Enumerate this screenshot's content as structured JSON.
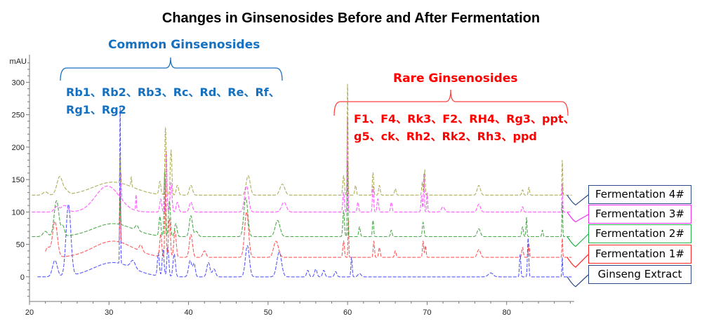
{
  "title": "Changes in Ginsenosides Before and After Fermentation",
  "groups": {
    "common": {
      "title": "Common Ginsenosides",
      "line1": "Rb1、Rb2、Rb3、Rc、Rd、Re、Rf、",
      "line2": "Rg1、Rg2",
      "color": "#1570c0"
    },
    "rare": {
      "title": "Rare Ginsenosides",
      "line1": "F1、F4、Rk3、F2、RH4、Rg3、ppt、",
      "line2": "g5、ck、Rh2、Rk2、Rh3、ppd",
      "color": "#ff0000"
    }
  },
  "chart_data": {
    "type": "line",
    "title": "Changes in Ginsenosides Before and After Fermentation",
    "xlabel": "",
    "ylabel": "mAU",
    "xlim": [
      20,
      88.5
    ],
    "ylim": [
      -38,
      335
    ],
    "xticks": [
      20,
      30,
      40,
      50,
      60,
      70,
      80
    ],
    "yticks": [
      0,
      50,
      100,
      150,
      200,
      250,
      300
    ],
    "grid": false,
    "legend": "right",
    "peak_format": "[retention_time_min, height_mAU, width_min]",
    "series": [
      {
        "name": "Ginseng Extract",
        "color": "#3a3aff",
        "legend_border": "#2a4a8a",
        "baseline": 0,
        "start": 21,
        "peaks": [
          [
            23.2,
            25,
            0.3
          ],
          [
            24.9,
            110,
            0.3
          ],
          [
            30.5,
            22,
            2.5
          ],
          [
            31.4,
            245,
            0.05
          ],
          [
            33,
            12,
            0.3
          ],
          [
            36.2,
            35,
            0.12
          ],
          [
            36.8,
            40,
            0.12
          ],
          [
            37.4,
            45,
            0.12
          ],
          [
            38.2,
            35,
            0.15
          ],
          [
            40.2,
            25,
            0.2
          ],
          [
            40.7,
            20,
            0.15
          ],
          [
            42.5,
            22,
            0.2
          ],
          [
            43.2,
            12,
            0.2
          ],
          [
            47.4,
            48,
            0.25
          ],
          [
            51.4,
            38,
            0.3
          ],
          [
            55,
            10,
            0.15
          ],
          [
            56,
            12,
            0.15
          ],
          [
            57,
            10,
            0.15
          ],
          [
            58.5,
            8,
            0.15
          ],
          [
            60.5,
            30,
            0.08
          ],
          [
            61.5,
            5,
            0.2
          ],
          [
            78,
            6,
            0.3
          ],
          [
            81.7,
            35,
            0.08
          ],
          [
            82.7,
            60,
            0.08
          ],
          [
            87,
            30,
            0.05
          ]
        ]
      },
      {
        "name": "Fermentation 1#",
        "color": "#ff3b3b",
        "legend_border": "#ff2020",
        "baseline": 30,
        "start": 22,
        "peaks": [
          [
            22.3,
            15,
            0.3
          ],
          [
            23.2,
            55,
            0.3
          ],
          [
            30.5,
            25,
            2.5
          ],
          [
            31.4,
            80,
            0.05
          ],
          [
            34,
            10,
            0.2
          ],
          [
            36.5,
            35,
            0.12
          ],
          [
            37.1,
            120,
            0.08
          ],
          [
            37.6,
            60,
            0.12
          ],
          [
            38.3,
            40,
            0.15
          ],
          [
            40.3,
            35,
            0.2
          ],
          [
            42,
            10,
            0.2
          ],
          [
            47.3,
            70,
            0.25
          ],
          [
            51,
            25,
            0.3
          ],
          [
            59.5,
            25,
            0.1
          ],
          [
            60.1,
            60,
            0.05
          ],
          [
            63.3,
            25,
            0.08
          ],
          [
            64,
            15,
            0.1
          ],
          [
            66,
            10,
            0.1
          ],
          [
            69.5,
            25,
            0.08
          ],
          [
            69.8,
            18,
            0.08
          ],
          [
            76.5,
            12,
            0.2
          ],
          [
            82,
            15,
            0.1
          ],
          [
            82.8,
            20,
            0.08
          ],
          [
            87,
            30,
            0.05
          ]
        ]
      },
      {
        "name": "Fermentation 2#",
        "color": "#2e9a2e",
        "legend_border": "#22b14c",
        "baseline": 62,
        "start": 20.3,
        "peaks": [
          [
            22,
            8,
            0.3
          ],
          [
            23.4,
            55,
            0.3
          ],
          [
            24.2,
            15,
            0.2
          ],
          [
            30.5,
            20,
            2.5
          ],
          [
            31.4,
            45,
            0.05
          ],
          [
            33.5,
            8,
            0.2
          ],
          [
            36.4,
            30,
            0.12
          ],
          [
            37,
            100,
            0.08
          ],
          [
            37.6,
            55,
            0.12
          ],
          [
            38.4,
            20,
            0.15
          ],
          [
            40.3,
            32,
            0.2
          ],
          [
            41,
            8,
            0.2
          ],
          [
            47.2,
            60,
            0.25
          ],
          [
            51.2,
            25,
            0.3
          ],
          [
            59.5,
            40,
            0.1
          ],
          [
            60,
            120,
            0.05
          ],
          [
            61.5,
            15,
            0.1
          ],
          [
            63.2,
            25,
            0.08
          ],
          [
            65.5,
            10,
            0.1
          ],
          [
            69.5,
            22,
            0.1
          ],
          [
            76.5,
            12,
            0.2
          ],
          [
            82,
            15,
            0.1
          ],
          [
            82.5,
            30,
            0.06
          ],
          [
            84.5,
            10,
            0.08
          ],
          [
            87,
            55,
            0.05
          ]
        ]
      },
      {
        "name": "Fermentation 3#",
        "color": "#ff40ff",
        "legend_border": "#ee30ee",
        "baseline": 100,
        "start": 20.3,
        "peaks": [
          [
            23.4,
            8,
            0.3
          ],
          [
            24.4,
            10,
            0.4
          ],
          [
            29.8,
            40,
            1.5
          ],
          [
            31.5,
            40,
            0.05
          ],
          [
            33.4,
            25,
            0.05
          ],
          [
            36.5,
            20,
            0.12
          ],
          [
            37.2,
            95,
            0.08
          ],
          [
            37.8,
            45,
            0.12
          ],
          [
            38.6,
            15,
            0.15
          ],
          [
            40.3,
            15,
            0.2
          ],
          [
            47.3,
            40,
            0.25
          ],
          [
            52,
            15,
            0.3
          ],
          [
            59.5,
            30,
            0.1
          ],
          [
            60,
            150,
            0.05
          ],
          [
            61.3,
            15,
            0.1
          ],
          [
            63.2,
            40,
            0.08
          ],
          [
            63.8,
            20,
            0.1
          ],
          [
            65.5,
            15,
            0.1
          ],
          [
            69.3,
            25,
            0.08
          ],
          [
            69.6,
            60,
            0.06
          ],
          [
            70,
            30,
            0.06
          ],
          [
            72,
            8,
            0.2
          ],
          [
            76.5,
            12,
            0.2
          ],
          [
            82,
            8,
            0.1
          ],
          [
            87,
            45,
            0.05
          ]
        ]
      },
      {
        "name": "Fermentation 4#",
        "color": "#a0a040",
        "legend_border": "#2a4a8a",
        "baseline": 126,
        "start": 20.3,
        "peaks": [
          [
            22,
            5,
            0.3
          ],
          [
            23.8,
            28,
            0.35
          ],
          [
            24.6,
            6,
            0.3
          ],
          [
            30.5,
            20,
            2.5
          ],
          [
            31.4,
            45,
            0.05
          ],
          [
            32.8,
            15,
            0.06
          ],
          [
            36.4,
            20,
            0.12
          ],
          [
            37.1,
            104,
            0.08
          ],
          [
            37.8,
            70,
            0.1
          ],
          [
            38.6,
            15,
            0.15
          ],
          [
            40.3,
            15,
            0.2
          ],
          [
            47.5,
            30,
            0.25
          ],
          [
            51.8,
            17,
            0.3
          ],
          [
            59.5,
            30,
            0.1
          ],
          [
            60,
            175,
            0.05
          ],
          [
            61,
            15,
            0.1
          ],
          [
            63.2,
            35,
            0.08
          ],
          [
            64,
            15,
            0.1
          ],
          [
            66,
            10,
            0.1
          ],
          [
            69.4,
            20,
            0.08
          ],
          [
            69.7,
            40,
            0.06
          ],
          [
            76.5,
            15,
            0.2
          ],
          [
            82,
            8,
            0.1
          ],
          [
            82.8,
            12,
            0.08
          ],
          [
            87,
            55,
            0.05
          ]
        ]
      }
    ]
  }
}
